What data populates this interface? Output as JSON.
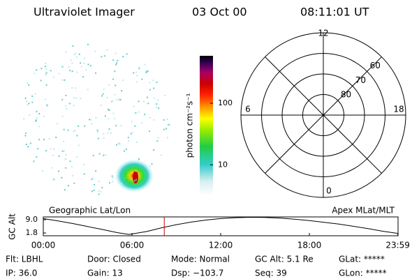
{
  "header": {
    "title": "Ultraviolet Imager",
    "date": "03 Oct 00",
    "time": "08:11:01 UT"
  },
  "colorbar": {
    "label": "photon cm⁻²s⁻¹",
    "log": true,
    "lim": [
      3.2,
      590
    ],
    "ticks": [
      10,
      100
    ]
  },
  "polar": {
    "rlim": [
      90,
      50
    ],
    "latitudes": [
      80,
      70,
      60
    ],
    "hours": [
      12,
      18,
      6,
      0
    ]
  },
  "altitude": {
    "left_label": "Geographic Lat/Lon",
    "right_label": "Apex MLat/MLT",
    "ylabel": "GC Alt",
    "xlim": [
      0,
      24
    ],
    "ylim": [
      0.3,
      10.5
    ],
    "yticks": [
      {
        "value": 9,
        "label": "9.0"
      },
      1.8
    ],
    "xticks": [
      {
        "value": 0,
        "label": "00:00"
      },
      {
        "value": 6,
        "label": "06:00"
      },
      {
        "value": 12,
        "label": "12:00"
      },
      {
        "value": 18,
        "label": "18:00"
      },
      {
        "value": 23.983,
        "label": "23:59"
      }
    ],
    "x": [
      0,
      1,
      2,
      3,
      4,
      5,
      5.8,
      7,
      8,
      9,
      10,
      11,
      12,
      13,
      14,
      15,
      16,
      17,
      18,
      19,
      20,
      21,
      22,
      23,
      23.983
    ],
    "values": [
      9.6,
      8.3,
      6.9,
      5.3,
      3.7,
      2.0,
      1.0,
      2.6,
      4.6,
      6.3,
      7.7,
      8.8,
      9.6,
      10.1,
      10.3,
      10.2,
      9.9,
      9.3,
      8.5,
      7.6,
      6.6,
      5.4,
      4.1,
      2.7,
      1.6
    ],
    "marker": 8.184,
    "marker_color": "#cc0000"
  },
  "info": [
    [
      "Flt: LBHL",
      "Door: Closed",
      "Mode: Normal",
      "GC Alt: 5.1 Re",
      "GLat: *****"
    ],
    [
      "IP: 36.0",
      "Gain: 13",
      "Dsp: −103.7",
      "Seq: 39",
      "GLon: *****"
    ]
  ]
}
